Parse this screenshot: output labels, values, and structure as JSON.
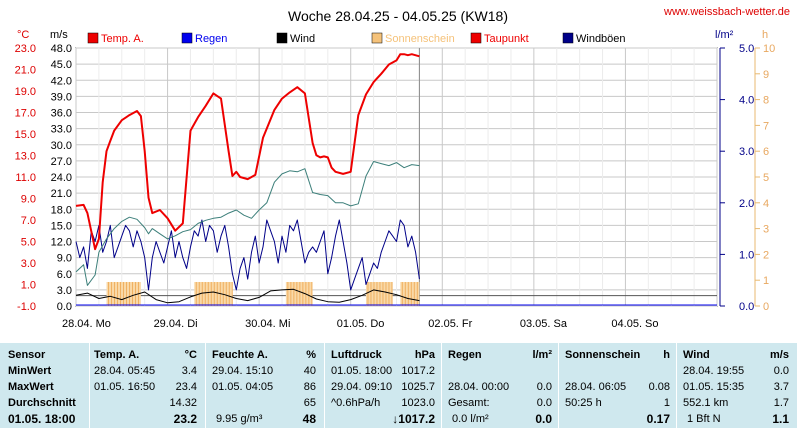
{
  "chart_data": {
    "type": "line",
    "title": "Woche 28.04.25 - 04.05.25 (KW18)",
    "site": "www.weissbach-wetter.de",
    "units": {
      "temp": "°C",
      "wind": "m/s",
      "rain": "l/m²",
      "sun": "h"
    },
    "legend": [
      {
        "name": "Temp. A.",
        "color": "#ee0000",
        "text_color": "#ee0000"
      },
      {
        "name": "Regen",
        "color": "#0000ee",
        "text_color": "#0000ee"
      },
      {
        "name": "Wind",
        "color": "#000000",
        "text_color": "#000000"
      },
      {
        "name": "Sonnenschein",
        "color": "#f5c27a",
        "text_color": "#f5c27a"
      },
      {
        "name": "Taupunkt",
        "color": "#ee0000",
        "text_color": "#ee0000"
      },
      {
        "name": "Windböen",
        "color": "#000088",
        "text_color": "#000000"
      }
    ],
    "y_left_temp_ticks": [
      "23.0",
      "21.0",
      "19.0",
      "17.0",
      "15.0",
      "13.0",
      "11.0",
      "9.0",
      "7.0",
      "5.0",
      "3.0",
      "1.0",
      "-1.0"
    ],
    "y_left_wind_ticks": [
      "48.0",
      "45.0",
      "42.0",
      "39.0",
      "36.0",
      "33.0",
      "30.0",
      "27.0",
      "24.0",
      "21.0",
      "18.0",
      "15.0",
      "12.0",
      "9.0",
      "6.0",
      "3.0",
      "0.0"
    ],
    "y_right_rain_ticks": [
      "5.0",
      "4.0",
      "3.0",
      "2.0",
      "1.0",
      "0.0"
    ],
    "y_right_sun_ticks": [
      "10",
      "9",
      "8",
      "7",
      "6",
      "5",
      "4",
      "3",
      "2",
      "1",
      "0"
    ],
    "ylim_temp": [
      -1,
      24
    ],
    "ylim_rain": [
      0,
      5
    ],
    "x_days": [
      "28.04. Mo",
      "29.04. Di",
      "30.04. Mi",
      "01.05. Do",
      "02.05. Fr",
      "03.05. Sa",
      "04.05. So"
    ],
    "x_range_hours": [
      0,
      168
    ],
    "now_hour": 90,
    "temperature": {
      "x": [
        0,
        2,
        3,
        5,
        6,
        7,
        8,
        9,
        10,
        12,
        14,
        16,
        17,
        18,
        19,
        20,
        22,
        24,
        26,
        28,
        30,
        32,
        34,
        36,
        38,
        40,
        41,
        42,
        43,
        45,
        47,
        49,
        52,
        54,
        56,
        58,
        60,
        62,
        63,
        64,
        65,
        66,
        67,
        68,
        70,
        72,
        74,
        76,
        78,
        80,
        82,
        84,
        85,
        86,
        87,
        88,
        90
      ],
      "y": [
        8.7,
        8.8,
        8.0,
        4.5,
        5.5,
        11.0,
        14.0,
        15.0,
        16.0,
        17.0,
        17.5,
        17.9,
        17.4,
        14.0,
        9.5,
        8.0,
        8.3,
        7.5,
        6.3,
        7.0,
        16.0,
        17.3,
        18.4,
        19.6,
        19.1,
        14.0,
        11.6,
        12.0,
        11.5,
        11.3,
        11.7,
        15.3,
        18.0,
        19.1,
        19.7,
        20.2,
        19.6,
        14.8,
        13.6,
        13.4,
        13.5,
        13.4,
        12.4,
        12.0,
        11.8,
        12.0,
        17.5,
        19.5,
        20.7,
        21.5,
        22.4,
        22.8,
        23.4,
        23.4,
        23.3,
        23.4,
        23.2
      ]
    },
    "dew_point": {
      "x": [
        0,
        2,
        3,
        5,
        6,
        8,
        10,
        12,
        14,
        16,
        18,
        19,
        20,
        22,
        24,
        26,
        28,
        30,
        32,
        34,
        36,
        38,
        40,
        42,
        44,
        46,
        48,
        50,
        52,
        54,
        56,
        58,
        60,
        62,
        64,
        66,
        68,
        70,
        72,
        74,
        76,
        78,
        80,
        82,
        84,
        86,
        88,
        90
      ],
      "y": [
        2.3,
        3.0,
        1.0,
        2.0,
        4.2,
        5.5,
        6.5,
        7.2,
        7.6,
        7.4,
        6.6,
        6.0,
        6.5,
        6.0,
        5.5,
        5.8,
        6.2,
        6.4,
        7.0,
        7.3,
        7.5,
        7.6,
        8.0,
        8.3,
        7.8,
        7.5,
        8.3,
        9.0,
        11.0,
        11.8,
        12.1,
        12.0,
        12.3,
        10.0,
        9.8,
        9.7,
        9.0,
        9.0,
        8.7,
        8.9,
        11.6,
        13.0,
        12.8,
        12.6,
        12.9,
        12.4,
        12.7,
        12.6
      ]
    },
    "wind_gusts": {
      "x": [
        0,
        1,
        2,
        3,
        4,
        5,
        6,
        7,
        8,
        9,
        10,
        11,
        12,
        13,
        14,
        15,
        16,
        17,
        18,
        19,
        20,
        21,
        22,
        23,
        24,
        25,
        26,
        27,
        28,
        29,
        30,
        31,
        32,
        33,
        34,
        35,
        36,
        37,
        38,
        39,
        40,
        41,
        42,
        43,
        44,
        45,
        46,
        47,
        48,
        49,
        50,
        51,
        52,
        53,
        54,
        55,
        56,
        57,
        58,
        59,
        60,
        61,
        62,
        63,
        64,
        65,
        66,
        67,
        68,
        69,
        70,
        71,
        72,
        73,
        74,
        75,
        76,
        77,
        78,
        79,
        80,
        81,
        82,
        83,
        84,
        85,
        86,
        87,
        88,
        89,
        90
      ],
      "y": [
        12,
        9,
        11,
        7,
        14,
        12,
        15,
        10,
        12,
        15,
        9,
        11,
        13,
        15,
        14,
        11,
        14,
        12,
        9,
        3,
        9,
        12,
        10,
        8,
        11,
        14,
        9,
        12,
        9,
        7,
        11,
        14,
        13,
        16,
        12,
        15,
        14,
        10,
        13,
        15,
        11,
        6,
        3,
        7,
        9,
        5,
        10,
        13,
        8,
        11,
        16,
        14,
        12,
        8,
        13,
        10,
        15,
        14,
        16,
        12,
        8,
        10,
        11,
        10,
        12,
        14,
        6,
        9,
        13,
        16,
        12,
        8,
        3,
        5,
        7,
        9,
        4,
        6,
        8,
        7,
        10,
        12,
        14,
        13,
        12,
        16,
        15,
        11,
        13,
        10,
        5
      ]
    },
    "wind": {
      "x": [
        0,
        3,
        6,
        9,
        12,
        15,
        18,
        21,
        24,
        27,
        30,
        33,
        36,
        39,
        42,
        45,
        48,
        51,
        54,
        57,
        60,
        63,
        66,
        69,
        72,
        75,
        78,
        81,
        84,
        87,
        90
      ],
      "y": [
        2.0,
        2.4,
        1.4,
        1.8,
        1.2,
        2.0,
        2.6,
        1.2,
        0.6,
        0.8,
        1.7,
        2.4,
        2.6,
        2.1,
        1.4,
        1.0,
        1.6,
        2.8,
        3.0,
        3.1,
        2.3,
        1.3,
        0.8,
        0.7,
        1.2,
        2.0,
        3.0,
        2.6,
        2.1,
        1.4,
        1.0
      ]
    },
    "sunshine_hours": [
      {
        "from": 8,
        "to": 17
      },
      {
        "from": 31,
        "to": 41
      },
      {
        "from": 55,
        "to": 62
      },
      {
        "from": 76,
        "to": 83
      },
      {
        "from": 85,
        "to": 90
      }
    ]
  },
  "table": {
    "rowlabels": {
      "title": "Sensor",
      "min": "MinWert",
      "max": "MaxWert",
      "avg": "Durchschnitt",
      "now": "01.05. 18:00"
    },
    "temp": {
      "title": "Temp. A.",
      "unit": "°C",
      "min_time": "28.04. 05:45",
      "min_val": "3.4",
      "max_time": "01.05. 16:50",
      "max_val": "23.4",
      "avg": "14.32",
      "now": "23.2"
    },
    "humidity": {
      "title": "Feuchte A.",
      "unit": "%",
      "min_time": "29.04. 15:10",
      "min_val": "40",
      "max_time": "01.05. 04:05",
      "max_val": "86",
      "avg": "65",
      "now_extra": "9.95 g/m³",
      "now": "48"
    },
    "pressure": {
      "title": "Luftdruck",
      "unit": "hPa",
      "min_time": "01.05. 18:00",
      "min_val": "1017.2",
      "max_time": "29.04. 09:10",
      "max_val": "1025.7",
      "avg_label": "^0.6hPa/h",
      "avg": "1023.0",
      "now": "↓1017.2"
    },
    "rain": {
      "title": "Regen",
      "unit": "l/m²",
      "max_time": "28.04. 00:00",
      "max_val": "0.0",
      "avg_label": "Gesamt:",
      "avg": "0.0",
      "now_extra": "0.0 l/m²",
      "now": "0.0"
    },
    "sun": {
      "title": "Sonnenschein",
      "unit": "h",
      "max_time": "28.04. 06:05",
      "max_val": "0.08",
      "avg_label": "50:25 h",
      "avg": "1",
      "now": "0.17"
    },
    "wind": {
      "title": "Wind",
      "unit": "m/s",
      "min_time": "28.04. 19:55",
      "min_val": "0.0",
      "max_time": "01.05. 15:35",
      "max_val": "3.7",
      "avg_label": "552.1 km",
      "avg": "1.7",
      "now_extra": "1 Bft N",
      "now": "1.1"
    }
  }
}
